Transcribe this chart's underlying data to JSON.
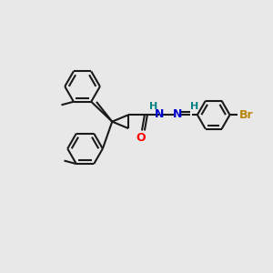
{
  "background_color": "#e8e8e8",
  "bond_color": "#1a1a1a",
  "atom_colors": {
    "O": "#ff0000",
    "N": "#0000cc",
    "Br": "#b8860b",
    "H": "#008080",
    "C": "#1a1a1a"
  },
  "figsize": [
    3.0,
    3.0
  ],
  "dpi": 100,
  "xlim": [
    0,
    10
  ],
  "ylim": [
    0,
    10
  ]
}
